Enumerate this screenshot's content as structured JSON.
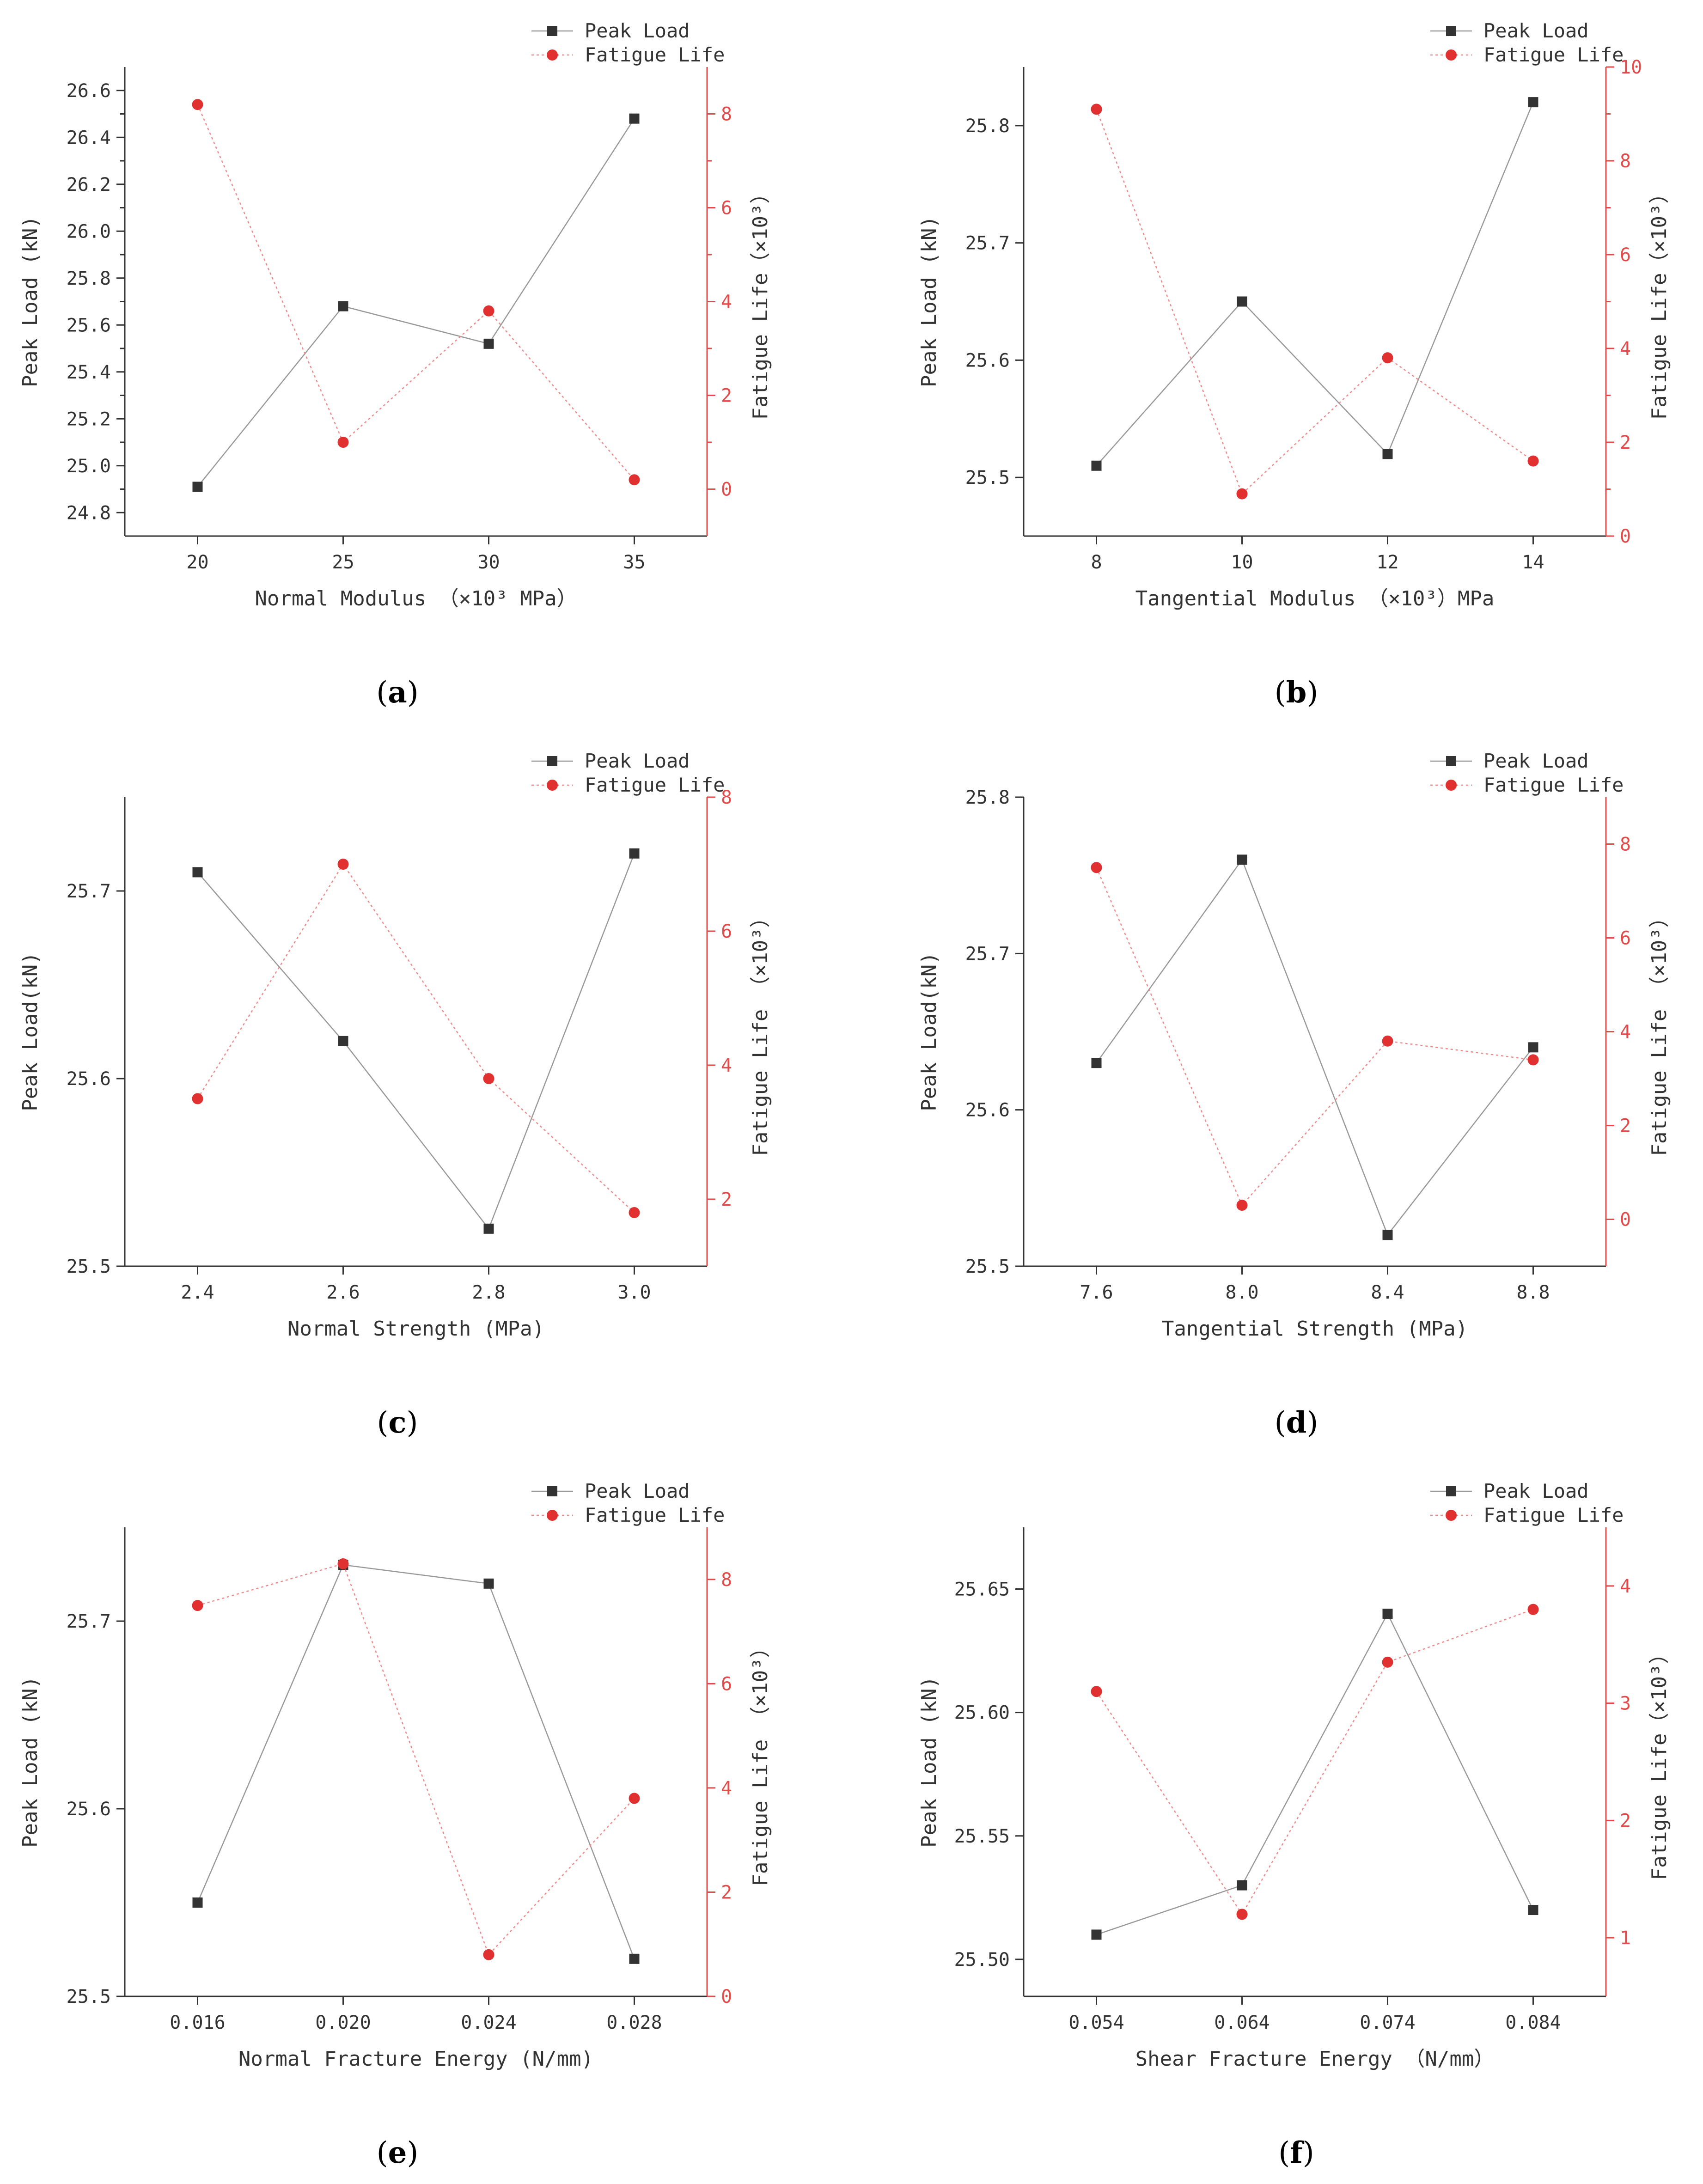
{
  "colors": {
    "peak": "#333333",
    "peak_line": "#999999",
    "fatigue": "#e03030",
    "fatigue_line": "#f08a8a",
    "right_axis": "#e34a4a"
  },
  "chart_data": [
    {
      "panel": "(a)",
      "panel_letter": "a",
      "type": "line",
      "xlabel": "Normal Modulus （×10³ MPa）",
      "ylabel": "Peak Load (kN)",
      "y2label": "Fatigue Life（×10³）",
      "categories": [
        "20",
        "25",
        "30",
        "35"
      ],
      "ylim": [
        24.7,
        26.7
      ],
      "yticks": [
        "24.8",
        "25.0",
        "25.2",
        "25.4",
        "25.6",
        "25.8",
        "26.0",
        "26.2",
        "26.4",
        "26.6"
      ],
      "yminor": true,
      "y2lim": [
        -1,
        9
      ],
      "y2ticks": [
        "0",
        "2",
        "4",
        "6",
        "8"
      ],
      "y2minor": true,
      "series": [
        {
          "name": "Peak Load",
          "axis": "left",
          "values": [
            24.91,
            25.68,
            25.52,
            26.48
          ]
        },
        {
          "name": "Fatigue Life",
          "axis": "right",
          "values": [
            8.2,
            1.0,
            3.8,
            0.2
          ]
        }
      ]
    },
    {
      "panel": "(b)",
      "panel_letter": "b",
      "type": "line",
      "xlabel": "Tangential Modulus （×10³）MPa",
      "ylabel": "Peak Load (kN)",
      "y2label": "Fatigue Life（×10³）",
      "categories": [
        "8",
        "10",
        "12",
        "14"
      ],
      "ylim": [
        25.45,
        25.85
      ],
      "yticks": [
        "25.5",
        "25.6",
        "25.7",
        "25.8"
      ],
      "yminor": false,
      "y2lim": [
        0,
        10
      ],
      "y2ticks": [
        "0",
        "2",
        "4",
        "6",
        "8",
        "10"
      ],
      "y2minor": true,
      "series": [
        {
          "name": "Peak Load",
          "axis": "left",
          "values": [
            25.51,
            25.65,
            25.52,
            25.82
          ]
        },
        {
          "name": "Fatigue Life",
          "axis": "right",
          "values": [
            9.1,
            0.9,
            3.8,
            1.6
          ]
        }
      ]
    },
    {
      "panel": "(c)",
      "panel_letter": "c",
      "type": "line",
      "xlabel": "Normal Strength (MPa)",
      "ylabel": "Peak Load(kN)",
      "y2label": "Fatigue Life （×10³）",
      "categories": [
        "2.4",
        "2.6",
        "2.8",
        "3.0"
      ],
      "ylim": [
        25.5,
        25.75
      ],
      "yticks": [
        "25.5",
        "25.6",
        "25.7"
      ],
      "yminor": false,
      "y2lim": [
        1,
        8
      ],
      "y2ticks": [
        "2",
        "4",
        "6",
        "8"
      ],
      "y2minor": false,
      "series": [
        {
          "name": "Peak Load",
          "axis": "left",
          "values": [
            25.71,
            25.62,
            25.52,
            25.72
          ]
        },
        {
          "name": "Fatigue Life",
          "axis": "right",
          "values": [
            3.5,
            7.0,
            3.8,
            1.8
          ]
        }
      ]
    },
    {
      "panel": "(d)",
      "panel_letter": "d",
      "type": "line",
      "xlabel": "Tangential Strength (MPa)",
      "ylabel": "Peak Load(kN)",
      "y2label": "Fatigue Life （×10³）",
      "categories": [
        "7.6",
        "8.0",
        "8.4",
        "8.8"
      ],
      "ylim": [
        25.5,
        25.8
      ],
      "yticks": [
        "25.5",
        "25.6",
        "25.7",
        "25.8"
      ],
      "yminor": false,
      "y2lim": [
        -1,
        9
      ],
      "y2ticks": [
        "0",
        "2",
        "4",
        "6",
        "8"
      ],
      "y2minor": false,
      "series": [
        {
          "name": "Peak Load",
          "axis": "left",
          "values": [
            25.63,
            25.76,
            25.52,
            25.64
          ]
        },
        {
          "name": "Fatigue Life",
          "axis": "right",
          "values": [
            7.5,
            0.3,
            3.8,
            3.4
          ]
        }
      ]
    },
    {
      "panel": "(e)",
      "panel_letter": "e",
      "type": "line",
      "xlabel": "Normal Fracture Energy (N/mm)",
      "ylabel": "Peak Load (kN)",
      "y2label": "Fatigue Life （×10³）",
      "categories": [
        "0.016",
        "0.020",
        "0.024",
        "0.028"
      ],
      "ylim": [
        25.5,
        25.75
      ],
      "yticks": [
        "25.5",
        "25.6",
        "25.7"
      ],
      "yminor": false,
      "y2lim": [
        0,
        9
      ],
      "y2ticks": [
        "0",
        "2",
        "4",
        "6",
        "8"
      ],
      "y2minor": false,
      "series": [
        {
          "name": "Peak Load",
          "axis": "left",
          "values": [
            25.55,
            25.73,
            25.72,
            25.52
          ]
        },
        {
          "name": "Fatigue Life",
          "axis": "right",
          "values": [
            7.5,
            8.3,
            0.8,
            3.8
          ]
        }
      ]
    },
    {
      "panel": "(f)",
      "panel_letter": "f",
      "type": "line",
      "xlabel": "Shear Fracture Energy （N/mm）",
      "ylabel": "Peak Load (kN)",
      "y2label": "Fatigue Life（×10³）",
      "categories": [
        "0.054",
        "0.064",
        "0.074",
        "0.084"
      ],
      "ylim": [
        25.485,
        25.675
      ],
      "yticks": [
        "25.50",
        "25.55",
        "25.60",
        "25.65"
      ],
      "yminor": false,
      "y2lim": [
        0.5,
        4.5
      ],
      "y2ticks": [
        "1",
        "2",
        "3",
        "4"
      ],
      "y2minor": false,
      "series": [
        {
          "name": "Peak Load",
          "axis": "left",
          "values": [
            25.51,
            25.53,
            25.64,
            25.52
          ]
        },
        {
          "name": "Fatigue Life",
          "axis": "right",
          "values": [
            3.1,
            1.2,
            3.35,
            3.8
          ]
        }
      ]
    }
  ]
}
